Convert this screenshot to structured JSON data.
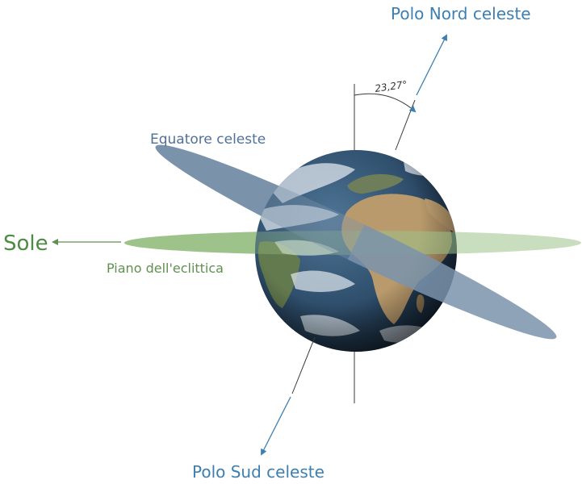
{
  "labels": {
    "north_pole": "Polo Nord celeste",
    "south_pole": "Polo Sud celeste",
    "celestial_equator": "Equatore celeste",
    "sun": "Sole",
    "ecliptic_plane": "Piano dell'eclittica",
    "tilt_angle": "23,27°"
  },
  "colors": {
    "pole_blue": "#3d7fb1",
    "equator_fill": "#7a93ab",
    "equator_label": "#4f7197",
    "ecliptic_fill": "#9dc38a",
    "ecliptic_label": "#5f9150",
    "sun_label": "#4d8a43",
    "axis_line": "#3a3a3a"
  },
  "icons": {
    "earth": "earth-globe-icon"
  }
}
